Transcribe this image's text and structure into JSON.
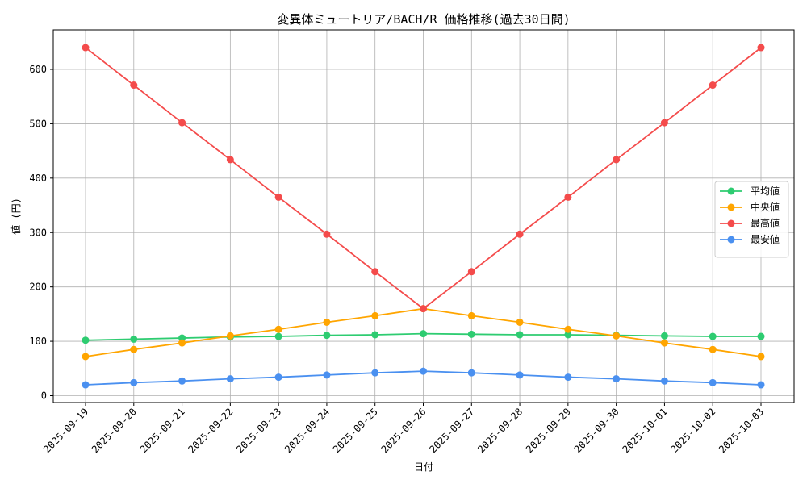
{
  "chart_data": {
    "type": "line",
    "title": "変異体ミュートリア/BACH/R 価格推移(過去30日間)",
    "xlabel": "日付",
    "ylabel": "値 (円)",
    "categories": [
      "2025-09-19",
      "2025-09-20",
      "2025-09-21",
      "2025-09-22",
      "2025-09-23",
      "2025-09-24",
      "2025-09-25",
      "2025-09-26",
      "2025-09-27",
      "2025-09-28",
      "2025-09-29",
      "2025-09-30",
      "2025-10-01",
      "2025-10-02",
      "2025-10-03"
    ],
    "ylim": [
      -10,
      670
    ],
    "yticks": [
      0,
      100,
      200,
      300,
      400,
      500,
      600
    ],
    "grid": true,
    "legend_position": "center-right",
    "series": [
      {
        "name": "平均値",
        "color": "#2ecc71",
        "values": [
          102,
          104,
          106,
          108,
          109,
          111,
          112,
          114,
          113,
          112,
          112,
          111,
          110,
          109,
          109
        ]
      },
      {
        "name": "中央値",
        "color": "#ffa500",
        "values": [
          72,
          85,
          97,
          110,
          122,
          135,
          147,
          160,
          147,
          135,
          122,
          110,
          97,
          85,
          72
        ]
      },
      {
        "name": "最高値",
        "color": "#f44b4b",
        "values": [
          640,
          571,
          502,
          434,
          365,
          297,
          228,
          160,
          228,
          297,
          365,
          434,
          502,
          571,
          640
        ]
      },
      {
        "name": "最安値",
        "color": "#4a90f0",
        "values": [
          20,
          24,
          27,
          31,
          34,
          38,
          42,
          45,
          42,
          38,
          34,
          31,
          27,
          24,
          20
        ]
      }
    ]
  }
}
